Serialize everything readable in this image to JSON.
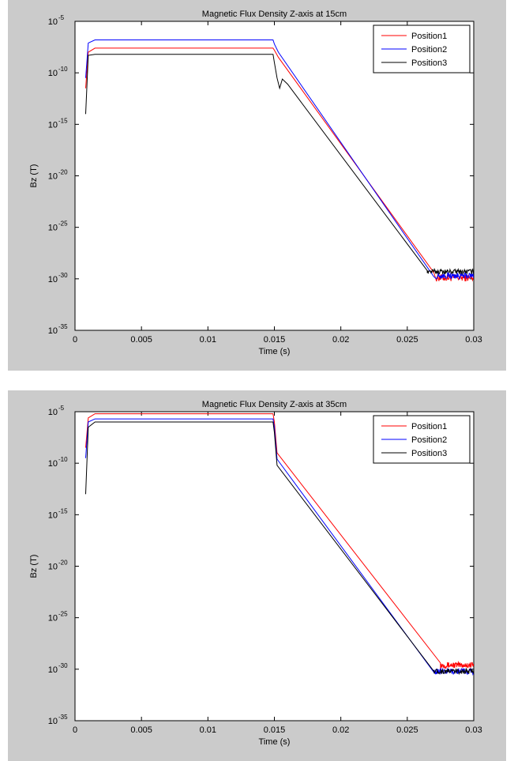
{
  "chart_data": [
    {
      "type": "line",
      "title": "Magnetic Flux Density Z-axis at 15cm",
      "xlabel": "Time (s)",
      "ylabel": "Bz (T)",
      "xlim": [
        0,
        0.03
      ],
      "ylim_exp": [
        -35,
        -5
      ],
      "yscale": "log",
      "x_ticks": [
        "0",
        "0.005",
        "0.01",
        "0.015",
        "0.02",
        "0.025",
        "0.03"
      ],
      "x_tick_values": [
        0,
        0.005,
        0.01,
        0.015,
        0.02,
        0.025,
        0.03
      ],
      "y_tick_exps": [
        -35,
        -30,
        -25,
        -20,
        -15,
        -10,
        -5
      ],
      "y_tick_base": "10",
      "y_tick_exp_labels": [
        "-35",
        "-30",
        "-25",
        "-20",
        "-15",
        "-10",
        "-5"
      ],
      "legend_placement": "top-right",
      "grid": false,
      "series": [
        {
          "name": "Position1",
          "color": "#ff0000",
          "points_log10": [
            [
              0.0008,
              -11.5
            ],
            [
              0.001,
              -8.0
            ],
            [
              0.0015,
              -7.6
            ],
            [
              0.0149,
              -7.6
            ],
            [
              0.015,
              -7.8
            ],
            [
              0.0153,
              -8.5
            ],
            [
              0.027,
              -29.4
            ],
            [
              0.03,
              -30.1
            ]
          ],
          "noise": [
            0.0272,
            0.03,
            -29.9,
            0.35
          ]
        },
        {
          "name": "Position2",
          "color": "#0000ff",
          "points_log10": [
            [
              0.0008,
              -10.5
            ],
            [
              0.001,
              -7.1
            ],
            [
              0.0015,
              -6.8
            ],
            [
              0.0149,
              -6.8
            ],
            [
              0.015,
              -7.2
            ],
            [
              0.0153,
              -8.0
            ],
            [
              0.027,
              -29.8
            ],
            [
              0.03,
              -29.6
            ]
          ],
          "noise": [
            0.0272,
            0.03,
            -29.7,
            0.3
          ]
        },
        {
          "name": "Position3",
          "color": "#000000",
          "points_log10": [
            [
              0.0008,
              -14.0
            ],
            [
              0.001,
              -8.3
            ],
            [
              0.0015,
              -8.2
            ],
            [
              0.0149,
              -8.2
            ],
            [
              0.015,
              -9.0
            ],
            [
              0.0152,
              -10.5
            ],
            [
              0.0154,
              -11.5
            ],
            [
              0.0156,
              -10.6
            ],
            [
              0.016,
              -11.1
            ],
            [
              0.0265,
              -29.2
            ],
            [
              0.03,
              -29.3
            ]
          ],
          "noise": [
            0.0265,
            0.03,
            -29.3,
            0.25
          ]
        }
      ]
    },
    {
      "type": "line",
      "title": "Magnetic Flux Density Z-axis at 35cm",
      "xlabel": "Time (s)",
      "ylabel": "Bz (T)",
      "xlim": [
        0,
        0.03
      ],
      "ylim_exp": [
        -35,
        -5
      ],
      "yscale": "log",
      "x_ticks": [
        "0",
        "0.005",
        "0.01",
        "0.015",
        "0.02",
        "0.025",
        "0.03"
      ],
      "x_tick_values": [
        0,
        0.005,
        0.01,
        0.015,
        0.02,
        0.025,
        0.03
      ],
      "y_tick_exps": [
        -35,
        -30,
        -25,
        -20,
        -15,
        -10,
        -5
      ],
      "y_tick_base": "10",
      "y_tick_exp_labels": [
        "-35",
        "-30",
        "-25",
        "-20",
        "-15",
        "-10",
        "-5"
      ],
      "legend_placement": "top-right",
      "grid": false,
      "series": [
        {
          "name": "Position1",
          "color": "#ff0000",
          "points_log10": [
            [
              0.0008,
              -8.5
            ],
            [
              0.001,
              -5.6
            ],
            [
              0.0015,
              -5.2
            ],
            [
              0.0149,
              -5.2
            ],
            [
              0.015,
              -6.0
            ],
            [
              0.0152,
              -9.0
            ],
            [
              0.0275,
              -29.4
            ],
            [
              0.03,
              -29.6
            ]
          ],
          "noise": [
            0.0275,
            0.03,
            -29.6,
            0.3
          ]
        },
        {
          "name": "Position2",
          "color": "#0000ff",
          "points_log10": [
            [
              0.0008,
              -9.5
            ],
            [
              0.001,
              -6.0
            ],
            [
              0.0015,
              -5.7
            ],
            [
              0.0149,
              -5.7
            ],
            [
              0.015,
              -6.5
            ],
            [
              0.0152,
              -9.6
            ],
            [
              0.027,
              -30.3
            ],
            [
              0.03,
              -30.3
            ]
          ],
          "noise": [
            0.027,
            0.03,
            -30.2,
            0.3
          ]
        },
        {
          "name": "Position3",
          "color": "#000000",
          "points_log10": [
            [
              0.0008,
              -13.0
            ],
            [
              0.001,
              -6.5
            ],
            [
              0.0015,
              -6.0
            ],
            [
              0.0149,
              -6.0
            ],
            [
              0.015,
              -7.0
            ],
            [
              0.0152,
              -10.2
            ],
            [
              0.027,
              -30.2
            ],
            [
              0.03,
              -30.4
            ]
          ],
          "noise": [
            0.027,
            0.03,
            -30.2,
            0.25
          ]
        }
      ]
    }
  ]
}
